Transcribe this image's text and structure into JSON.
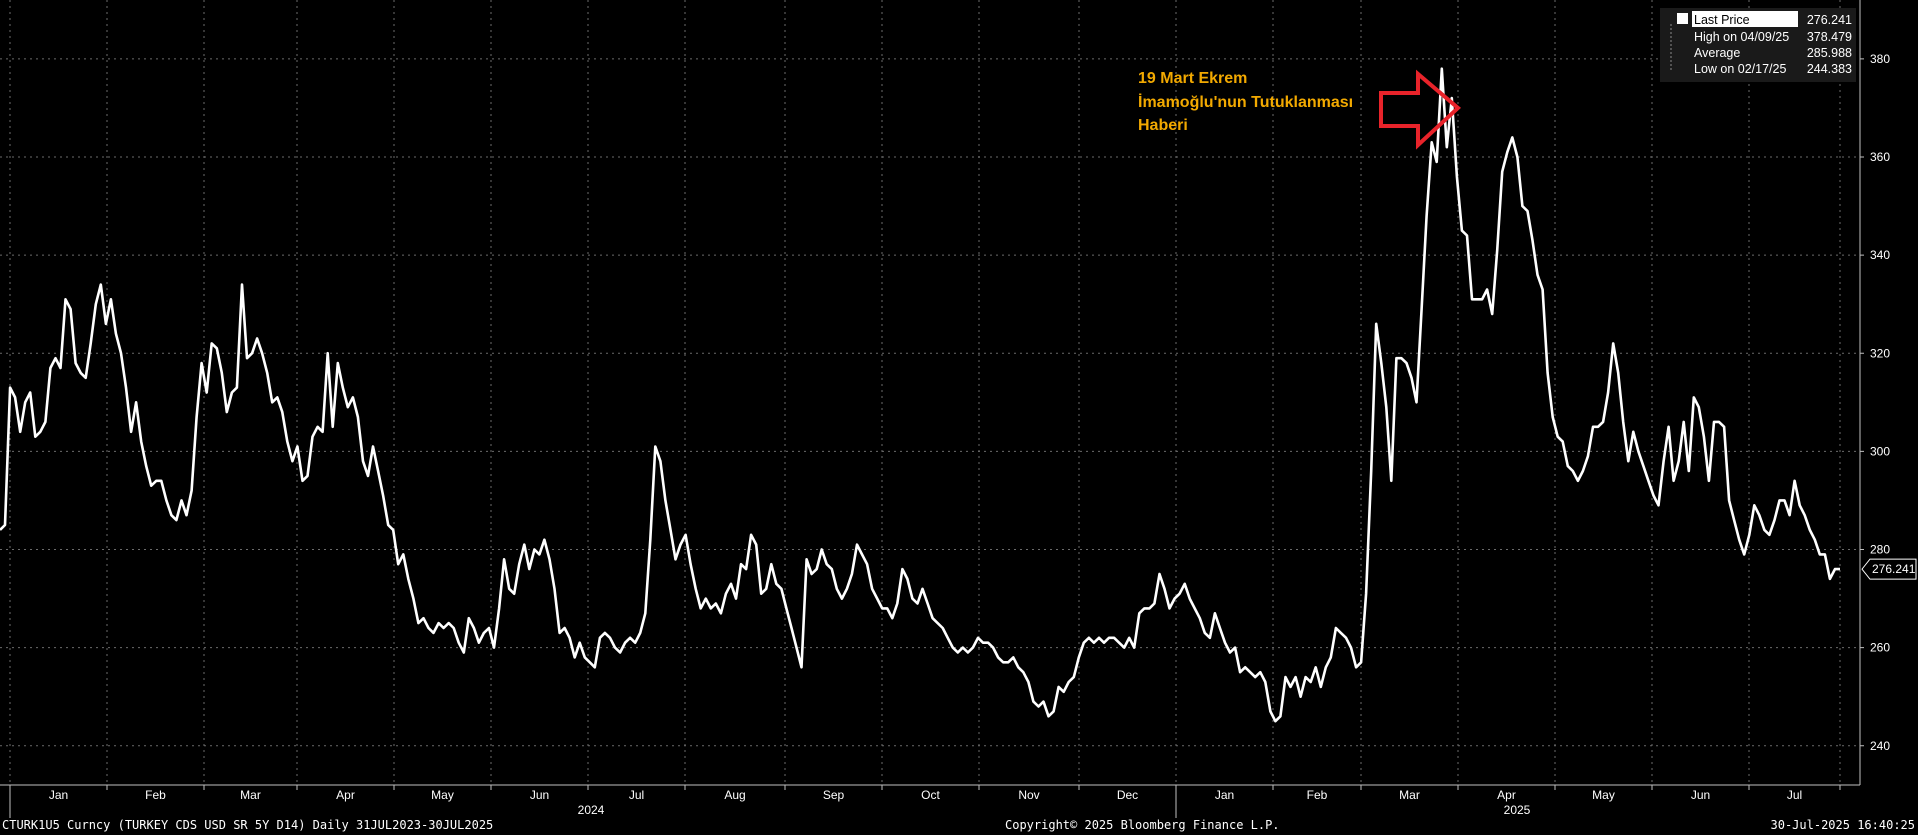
{
  "chart_data": {
    "type": "line",
    "yticks": [
      240,
      260,
      280,
      300,
      320,
      340,
      360,
      380
    ],
    "ylim": [
      232,
      392
    ],
    "x_tick_labels": [
      "Jan",
      "Feb",
      "Mar",
      "Apr",
      "May",
      "Jun",
      "Jul",
      "Aug",
      "Sep",
      "Oct",
      "Nov",
      "Dec",
      "Jan",
      "Feb",
      "Mar",
      "Apr",
      "May",
      "Jun",
      "Jul"
    ],
    "year_labels": [
      "2024",
      "2025"
    ],
    "series": [
      {
        "values": [
          284,
          285,
          313,
          311,
          304,
          310,
          312,
          303,
          304,
          306,
          317,
          319,
          317,
          331,
          329,
          318,
          316,
          315,
          322,
          330,
          334,
          326,
          331,
          324,
          320,
          313,
          304,
          310,
          302,
          297,
          293,
          294,
          294,
          290,
          287,
          286,
          290,
          287,
          292,
          307,
          318,
          312,
          322,
          321,
          316,
          308,
          312,
          313,
          334,
          319,
          320,
          323,
          320,
          316,
          310,
          311,
          308,
          302,
          298,
          301,
          294,
          295,
          303,
          305,
          304,
          320,
          305,
          318,
          313,
          309,
          311,
          307,
          298,
          295,
          301,
          296,
          291,
          285,
          284,
          277,
          279,
          274,
          270,
          265,
          266,
          264,
          263,
          265,
          264,
          265,
          264,
          261,
          259,
          266,
          264,
          261,
          263,
          264,
          260,
          268,
          278,
          272,
          271,
          277,
          281,
          276,
          280,
          279,
          282,
          278,
          272,
          263,
          264,
          262,
          258,
          261,
          258,
          257,
          256,
          262,
          263,
          262,
          260,
          259,
          261,
          262,
          261,
          263,
          267,
          282,
          301,
          298,
          290,
          284,
          278,
          281,
          283,
          277,
          272,
          268,
          270,
          268,
          269,
          267,
          271,
          273,
          270,
          277,
          276,
          283,
          281,
          271,
          272,
          277,
          273,
          272,
          268,
          264,
          260,
          256,
          278,
          275,
          276,
          280,
          277,
          276,
          272,
          270,
          272,
          275,
          281,
          279,
          277,
          272,
          270,
          268,
          268,
          266,
          269,
          276,
          274,
          270,
          269,
          272,
          269,
          266,
          265,
          264,
          262,
          260,
          259,
          260,
          259,
          260,
          262,
          261,
          261,
          260,
          258,
          257,
          257,
          258,
          256,
          255,
          253,
          249,
          248,
          249,
          246,
          247,
          252,
          251,
          253,
          254,
          258,
          261,
          262,
          261,
          262,
          261,
          262,
          262,
          261,
          260,
          262,
          260,
          267,
          268,
          268,
          269,
          275,
          272,
          268,
          270,
          271,
          273,
          270,
          268,
          266,
          263,
          262,
          267,
          264,
          261,
          259,
          260,
          255,
          256,
          255,
          254,
          255,
          253,
          247,
          245,
          246,
          254,
          252,
          254,
          250,
          254,
          253,
          256,
          252,
          256,
          258,
          264,
          263,
          262,
          260,
          256,
          257,
          271,
          296,
          326,
          318,
          309,
          294,
          319,
          319,
          318,
          315,
          310,
          329,
          348,
          363,
          359,
          378,
          362,
          372,
          356,
          345,
          344,
          331,
          331,
          331,
          333,
          328,
          341,
          357,
          361,
          364,
          360,
          350,
          349,
          343,
          336,
          333,
          316,
          307,
          303,
          302,
          297,
          296,
          294,
          296,
          299,
          305,
          305,
          306,
          312,
          322,
          316,
          306,
          298,
          304,
          300,
          297,
          294,
          291,
          289,
          298,
          305,
          294,
          298,
          306,
          296,
          311,
          309,
          303,
          294,
          306,
          306,
          305,
          290,
          286,
          282,
          279,
          283,
          289,
          287,
          284,
          283,
          286,
          290,
          290,
          287,
          294,
          289,
          287,
          284,
          282,
          279,
          279,
          274,
          276,
          276
        ]
      }
    ],
    "legend": {
      "last_label": "Last Price",
      "last_value": "276.241",
      "high_label": "High on 04/09/25",
      "high_value": "378.479",
      "avg_label": "Average",
      "avg_value": "285.988",
      "low_label": "Low on 02/17/25",
      "low_value": "244.383"
    },
    "last_value_tag": "276.241",
    "annotation": [
      "19 Mart Ekrem",
      "İmamoğlu'nun Tutuklanması",
      "Haberi"
    ]
  },
  "footer": {
    "left": "CTURK1U5 Curncy (TURKEY CDS USD SR 5Y D14)  Daily 31JUL2023-30JUL2025",
    "center": "Copyright© 2025 Bloomberg Finance L.P.",
    "right": "30-Jul-2025 16:40:25"
  },
  "colors": {
    "background": "#000000",
    "line": "#ffffff",
    "annotation": "#f2a900",
    "arrow": "#e8232a"
  }
}
